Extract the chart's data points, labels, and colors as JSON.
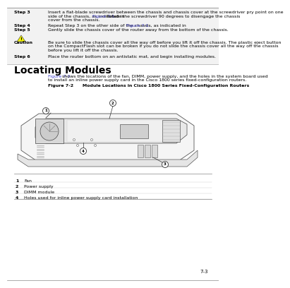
{
  "bg_color": "#ffffff",
  "text_color": "#000000",
  "blue_link_color": "#4444cc",
  "light_bg": "#f0f0f0",
  "step3_label": "Step 3",
  "step3_text1": "Insert a flat-blade screwdriver between the chassis and chassis cover at the screwdriver pry point on one",
  "step3_text2": "side of the chassis, as indicated in ",
  "step3_link": "Figure 7-1.",
  "step3_text3": " Rotate the screwdriver 90 degrees to disengage the chassis",
  "step3_text4": "cover from the chassis.",
  "step4_label": "Step 4",
  "step4_text": "Repeat Step 3 on the other side of the chassis, as indicated in ",
  "step4_link": "Figure 7-1.",
  "step5_label": "Step 5",
  "step5_text": "Gently slide the chassis cover of the router away from the bottom of the chassis.",
  "caution_label": "Caution",
  "caution_text1": "Be sure to slide the chassis cover all the way off before you lift it off the chassis. The plastic eject button",
  "caution_text2": "on the CompactFlash slot can be broken if you do not slide the chassis cover all the way off the chassis",
  "caution_text3": "before you lift it off the chassis.",
  "step6_label": "Step 6",
  "step6_text": "Place the router bottom on an antistatic mat, and begin installing modules.",
  "section_title": "Locating Modules",
  "intro_link": "Figure 7-2",
  "intro_text1": " shows the locations of the fan, DIMM, power supply, and the holes in the system board used",
  "intro_text2": "to install an inline power supply card in the Cisco 1800 series fixed-configuration routers.",
  "figure_label": "Figure 7-2",
  "figure_title": "Module Locations in Cisco 1800 Series Fixed-Configuration Routers",
  "legend_items": [
    {
      "num": "1",
      "text": "Fan"
    },
    {
      "num": "2",
      "text": "Power supply"
    },
    {
      "num": "3",
      "text": "DIMM module"
    },
    {
      "num": "4",
      "text": "Holes used for inline power supply card installation"
    }
  ],
  "page_num": "7-3"
}
